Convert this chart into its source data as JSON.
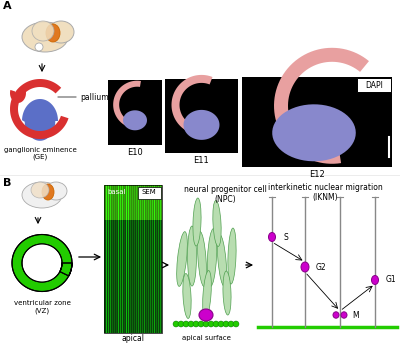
{
  "panel_A_label": "A",
  "panel_B_label": "B",
  "pallium_label": "pallium",
  "GE_label": "ganglionic eminence\n(GE)",
  "VZ_label": "ventricular zone\n(VZ)",
  "basal_label": "basal",
  "SEM_label": "SEM",
  "apical_label": "apical",
  "apical_surface_label": "apical surface",
  "NPC_label": "neural progenitor cell\n(NPC)",
  "IKNM_label": "interkinetic nuclear migration\n(IKNM)",
  "DAPI_label": "DAPI",
  "E10_label": "E10",
  "E11_label": "E11",
  "E12_label": "E12",
  "S_label": "S",
  "G2_label": "G2",
  "G1_label": "G1",
  "M_label": "M",
  "red_color": "#d93030",
  "blue_color": "#5b6fc7",
  "green_color": "#22cc00",
  "magenta_color": "#cc00cc",
  "light_green": "#b8ddb0",
  "orange_color": "#e07820",
  "pink_tissue": "#e8a0a0",
  "blue_tissue": "#8888cc"
}
